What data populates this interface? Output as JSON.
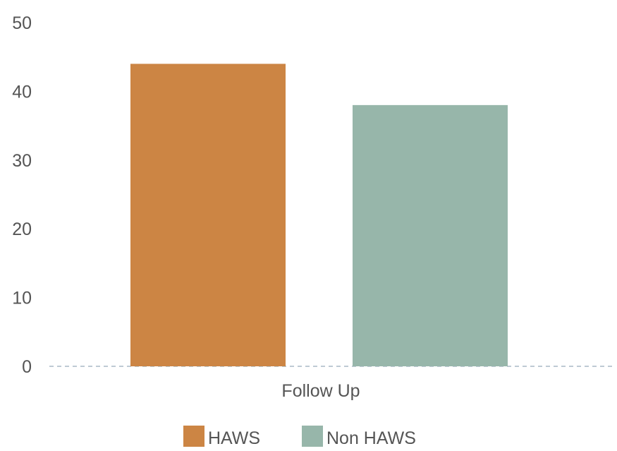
{
  "chart_data": {
    "type": "bar",
    "categories": [
      "Follow Up"
    ],
    "series": [
      {
        "name": "HAWS",
        "values": [
          44
        ],
        "color": "#cc8544"
      },
      {
        "name": "Non HAWS",
        "values": [
          38
        ],
        "color": "#97b6aa"
      }
    ],
    "ylim": [
      0,
      50
    ],
    "yticks": [
      "0",
      "10",
      "20",
      "30",
      "40",
      "50"
    ],
    "legend_position": "bottom",
    "grid": false,
    "baseline_style": "dashed"
  }
}
